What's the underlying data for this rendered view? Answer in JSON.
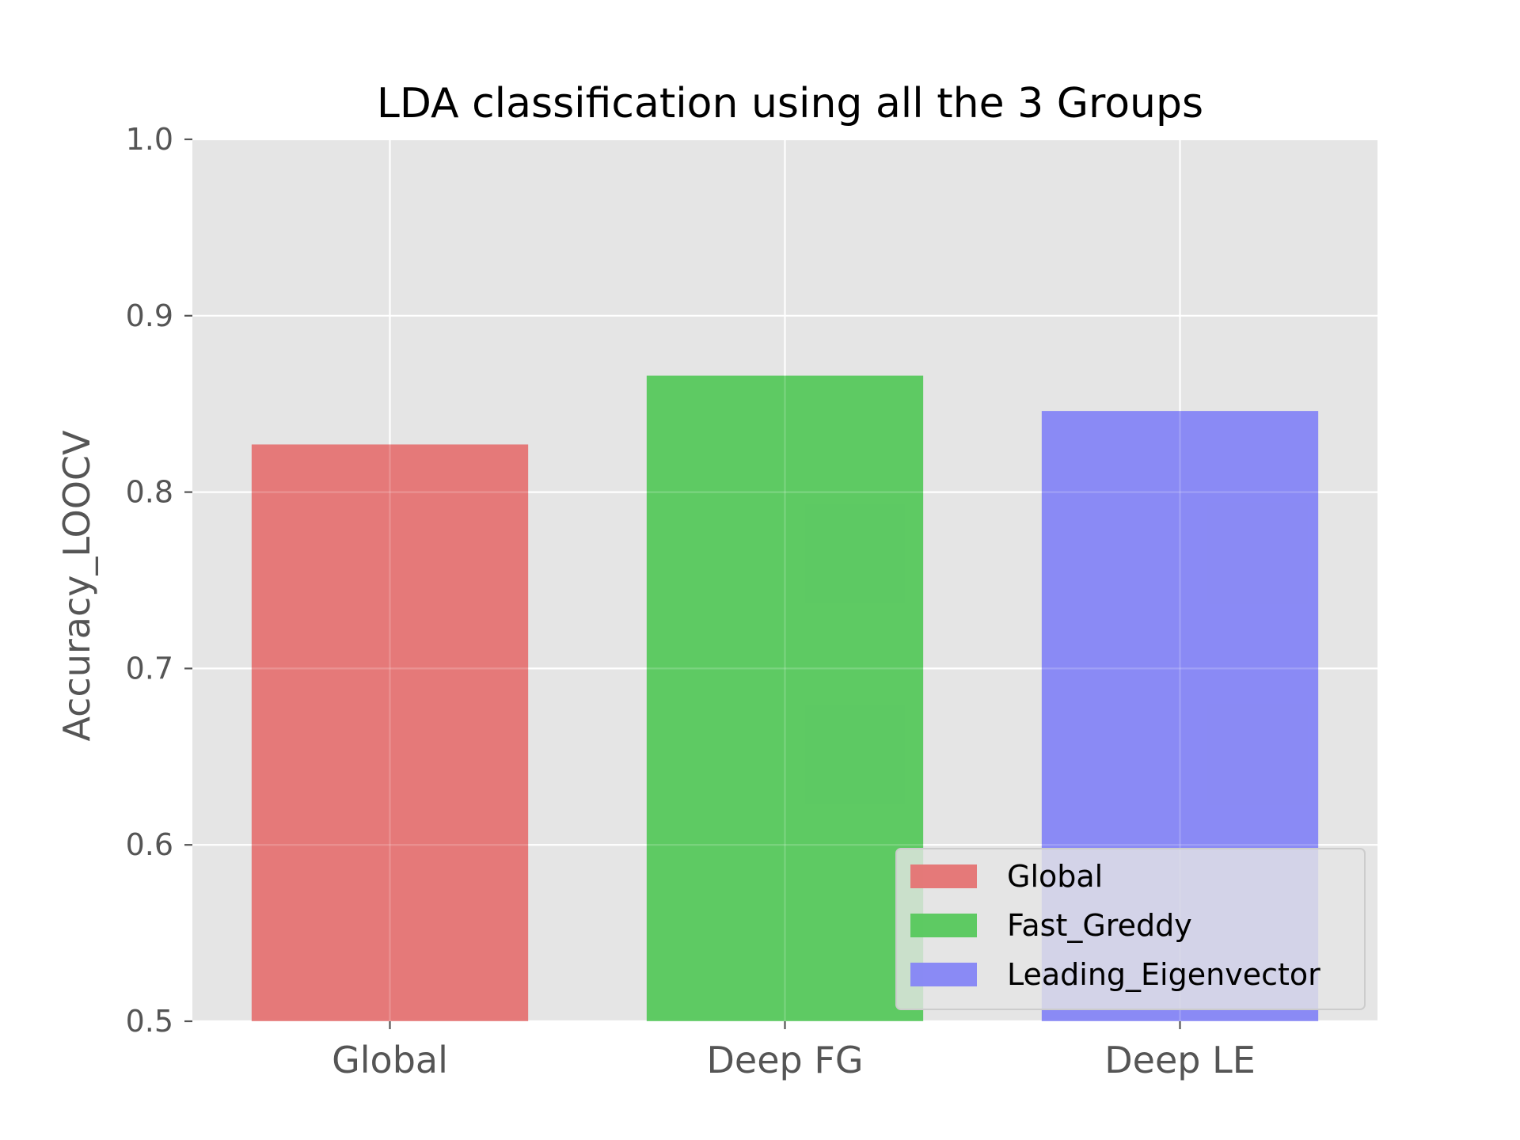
{
  "chart_data": {
    "type": "bar",
    "title": "LDA classification using all the 3 Groups",
    "xlabel": "",
    "ylabel": "Accuracy_LOOCV",
    "categories": [
      "Global",
      "Deep FG",
      "Deep LE"
    ],
    "values": [
      0.827,
      0.866,
      0.846
    ],
    "ylim": [
      0.5,
      1.0
    ],
    "yticks": [
      0.5,
      0.6,
      0.7,
      0.8,
      0.9,
      1.0
    ],
    "ytick_labels": [
      "0.5",
      "0.6",
      "0.7",
      "0.8",
      "0.9",
      "1.0"
    ],
    "grid": true,
    "legend_position": "lower-right",
    "legend": [
      "Global",
      "Fast_Greddy",
      "Leading_Eigenvector"
    ],
    "colors": [
      "#e57373",
      "#56c85c",
      "#8585f5"
    ],
    "background": "#e5e5e5",
    "grid_color": "#ffffff"
  }
}
